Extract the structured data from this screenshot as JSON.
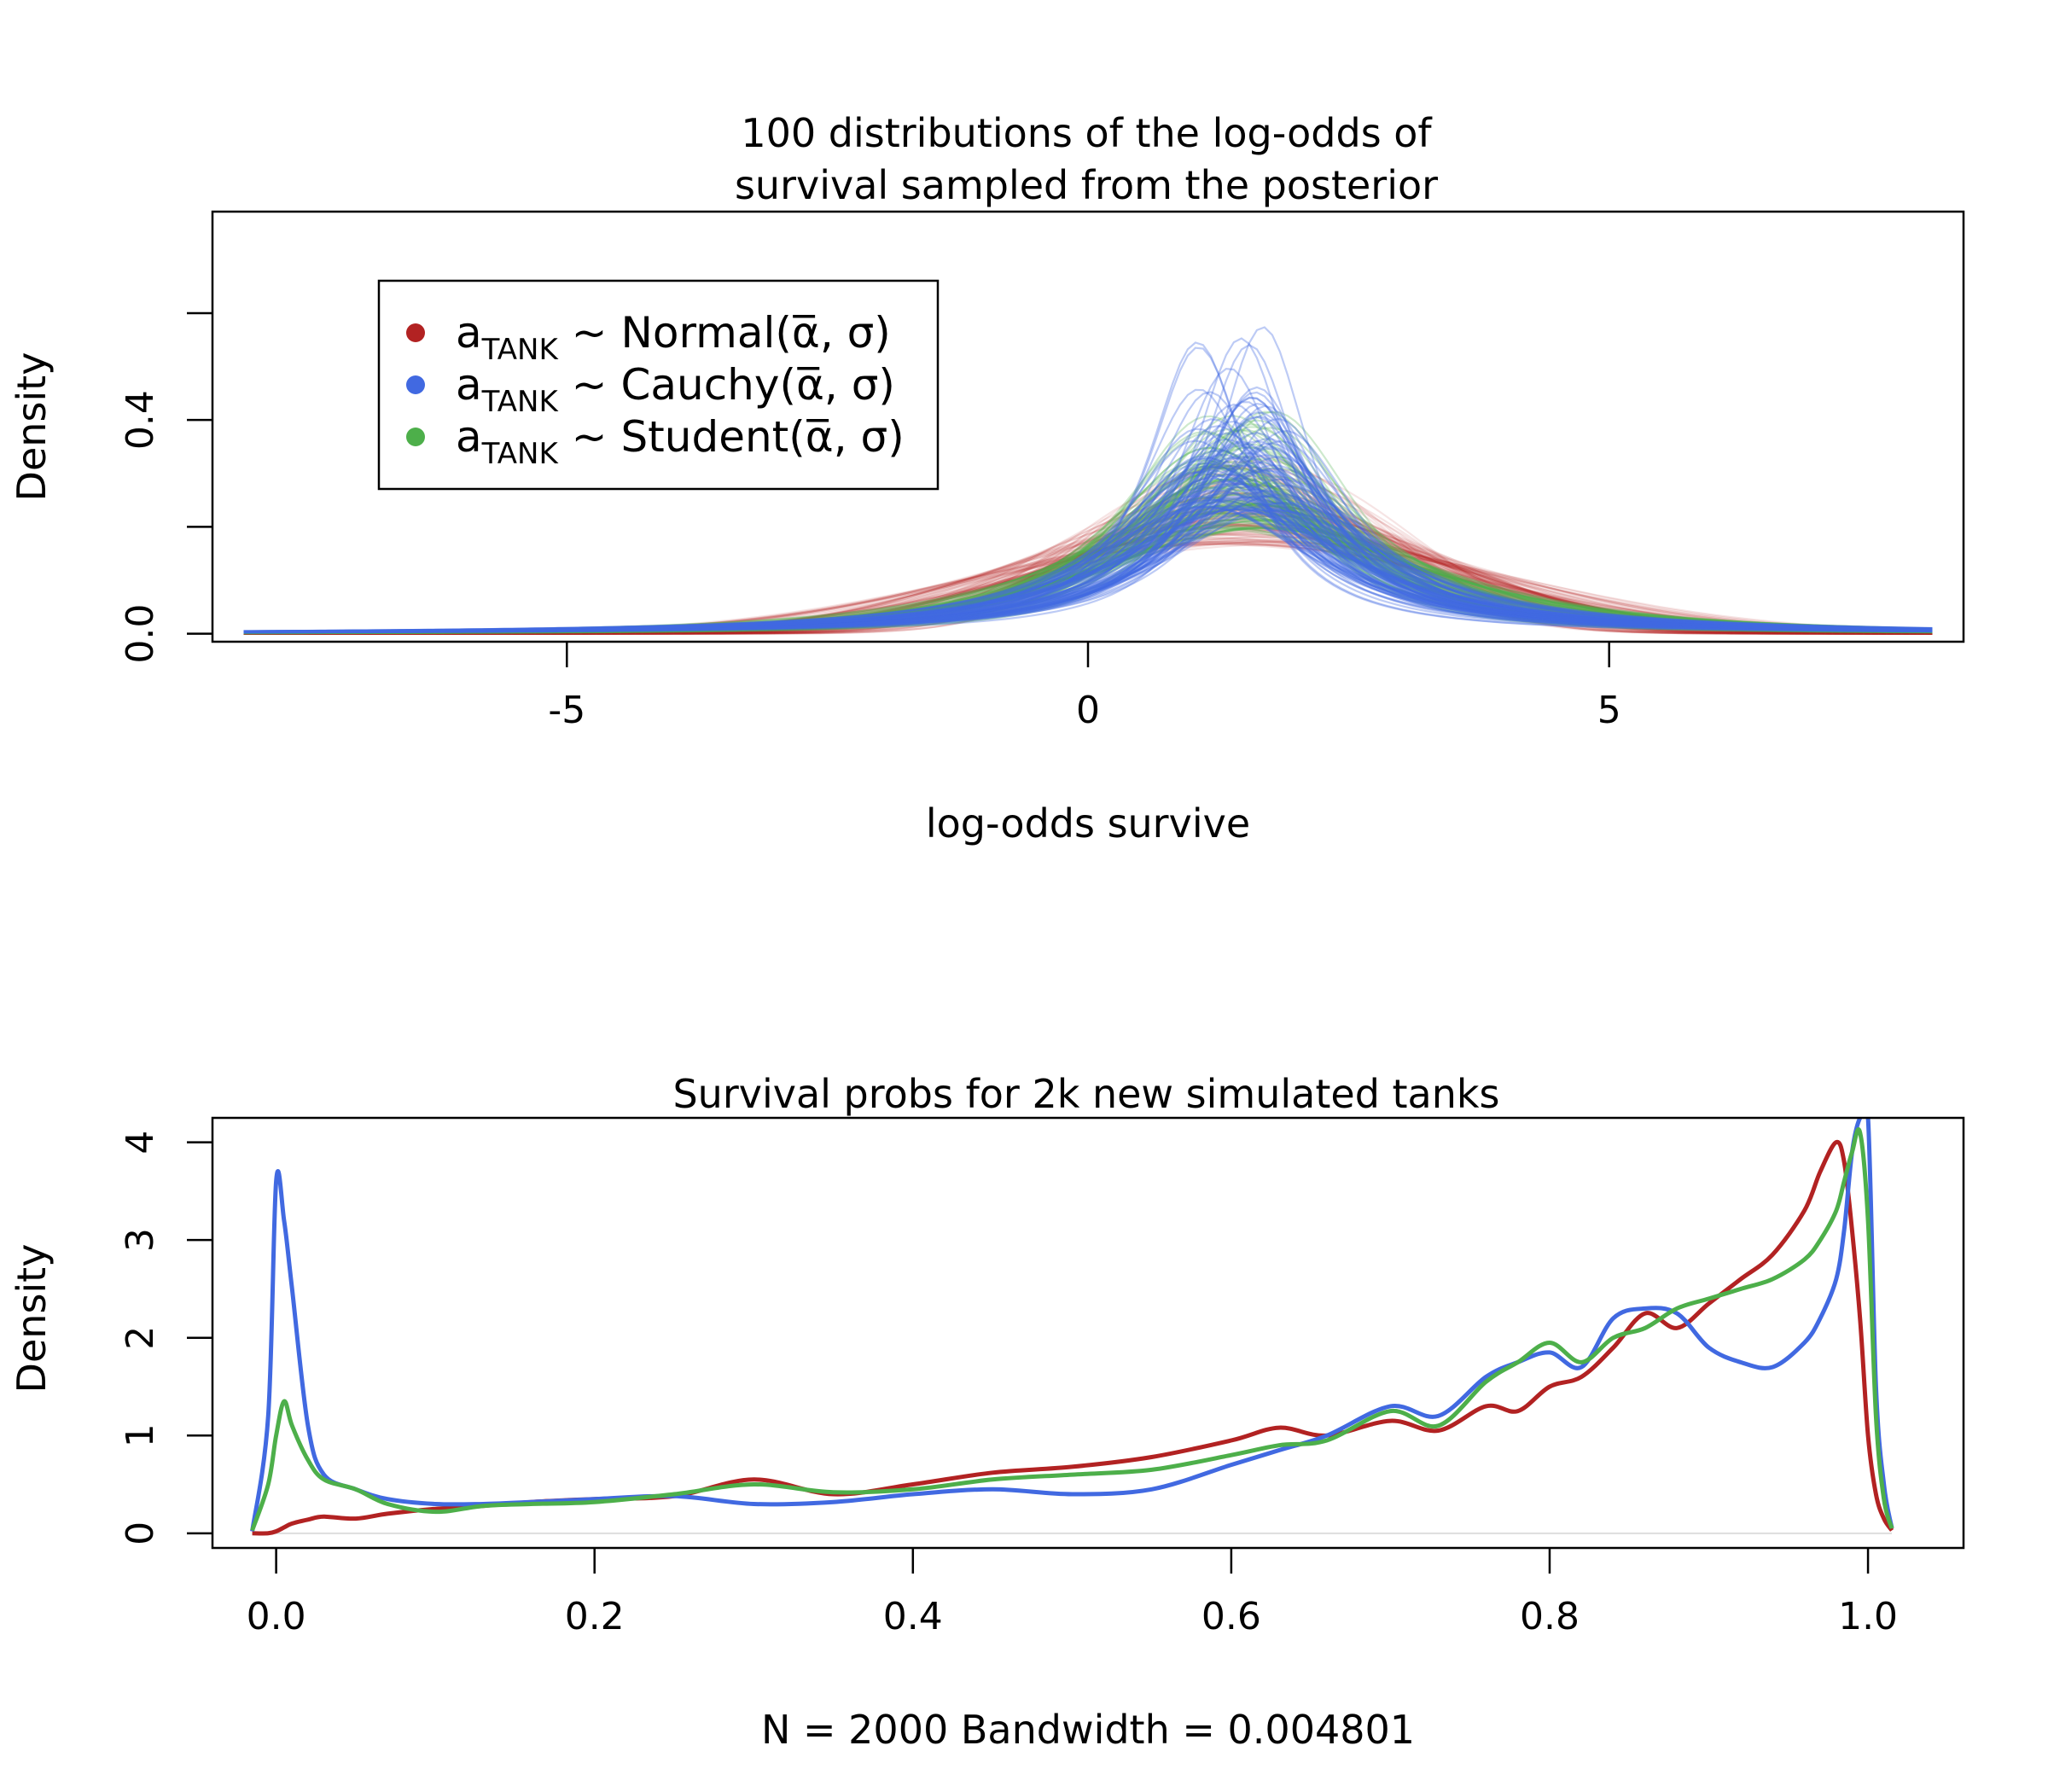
{
  "chart_data": [
    {
      "type": "line",
      "title_lines": [
        "100 distributions of the log-odds of",
        "survival sampled from the posterior"
      ],
      "xlabel": "log-odds survive",
      "ylabel": "Density",
      "xlim": [
        -8.4,
        8.4
      ],
      "ylim": [
        -0.015,
        0.79
      ],
      "x_ticks": [
        -5,
        0,
        5
      ],
      "x_tick_labels": [
        "-5",
        "0",
        "5"
      ],
      "y_ticks": [
        0.0,
        0.2,
        0.4,
        0.6
      ],
      "y_tick_labels": [
        "0.0",
        "",
        "0.4",
        ""
      ],
      "grid": false,
      "legend": {
        "placement": "top-left",
        "entries": [
          {
            "prefix": "a",
            "subscript": "TANK",
            "suffix": " ~ Normal(α̅, σ)",
            "color": "#b22222"
          },
          {
            "prefix": "a",
            "subscript": "TANK",
            "suffix": " ~ Cauchy(α̅, σ)",
            "color": "#4169e1"
          },
          {
            "prefix": "a",
            "subscript": "TANK",
            "suffix": " ~ Student(α̅, σ)",
            "color": "#4daf4a"
          }
        ]
      },
      "series_groups": [
        {
          "name": "Normal",
          "color": "#b22222",
          "count": 100,
          "curve": "normal",
          "mean_range": [
            1.1,
            1.8
          ],
          "sd_range": [
            1.2,
            2.4
          ]
        },
        {
          "name": "Cauchy",
          "color": "#4169e1",
          "count": 100,
          "curve": "cauchy",
          "location_range": [
            1.0,
            1.9
          ],
          "scale_range": [
            0.55,
            1.4
          ]
        },
        {
          "name": "Student",
          "color": "#4daf4a",
          "count": 100,
          "curve": "student-t",
          "location_range": [
            1.1,
            1.8
          ],
          "scale_range": [
            0.85,
            1.8
          ],
          "df": 2
        }
      ]
    },
    {
      "type": "line",
      "title": "Survival probs for 2k new simulated tanks",
      "xlabel": "N = 2000   Bandwidth = 0.004801",
      "ylabel": "Density",
      "xlim": [
        -0.04,
        1.06
      ],
      "ylim": [
        -0.15,
        4.25
      ],
      "x_ticks": [
        0.0,
        0.2,
        0.4,
        0.6,
        0.8,
        1.0
      ],
      "x_tick_labels": [
        "0.0",
        "0.2",
        "0.4",
        "0.6",
        "0.8",
        "1.0"
      ],
      "y_ticks": [
        0,
        1,
        2,
        3,
        4
      ],
      "y_tick_labels": [
        "0",
        "1",
        "2",
        "3",
        "4"
      ],
      "grid": false,
      "x": [
        -0.015,
        -0.005,
        0.0,
        0.005,
        0.01,
        0.02,
        0.03,
        0.05,
        0.07,
        0.1,
        0.13,
        0.16,
        0.2,
        0.25,
        0.3,
        0.35,
        0.4,
        0.45,
        0.5,
        0.55,
        0.6,
        0.63,
        0.66,
        0.7,
        0.73,
        0.76,
        0.78,
        0.8,
        0.82,
        0.84,
        0.86,
        0.88,
        0.9,
        0.92,
        0.94,
        0.96,
        0.97,
        0.98,
        0.985,
        0.99,
        0.995,
        1.0,
        1.005,
        1.01,
        1.015
      ],
      "series": [
        {
          "name": "Normal",
          "color": "#b22222",
          "values": [
            0.0,
            0.0,
            0.02,
            0.06,
            0.1,
            0.14,
            0.17,
            0.15,
            0.2,
            0.25,
            0.28,
            0.32,
            0.35,
            0.38,
            0.55,
            0.4,
            0.5,
            0.62,
            0.68,
            0.78,
            0.95,
            1.08,
            1.0,
            1.15,
            1.05,
            1.3,
            1.25,
            1.5,
            1.6,
            1.9,
            2.25,
            2.1,
            2.35,
            2.6,
            2.85,
            3.3,
            3.7,
            4.0,
            3.8,
            3.1,
            2.2,
            1.0,
            0.4,
            0.15,
            0.03
          ]
        },
        {
          "name": "Cauchy",
          "color": "#4169e1",
          "values": [
            0.02,
            1.2,
            3.6,
            3.2,
            2.5,
            1.1,
            0.6,
            0.45,
            0.35,
            0.3,
            0.3,
            0.32,
            0.35,
            0.38,
            0.3,
            0.32,
            0.4,
            0.45,
            0.4,
            0.45,
            0.7,
            0.85,
            1.0,
            1.3,
            1.2,
            1.6,
            1.75,
            1.85,
            1.7,
            2.2,
            2.3,
            2.25,
            1.9,
            1.75,
            1.7,
            1.95,
            2.2,
            2.6,
            3.1,
            3.9,
            4.25,
            4.25,
            1.5,
            0.5,
            0.05
          ]
        },
        {
          "name": "Student",
          "color": "#4daf4a",
          "values": [
            0.03,
            0.5,
            1.0,
            1.35,
            1.1,
            0.75,
            0.55,
            0.45,
            0.3,
            0.22,
            0.28,
            0.3,
            0.32,
            0.4,
            0.5,
            0.42,
            0.45,
            0.55,
            0.6,
            0.65,
            0.8,
            0.9,
            0.95,
            1.25,
            1.1,
            1.55,
            1.75,
            1.95,
            1.75,
            2.0,
            2.1,
            2.3,
            2.4,
            2.5,
            2.6,
            2.8,
            3.0,
            3.3,
            3.6,
            3.9,
            4.1,
            3.2,
            1.2,
            0.35,
            0.05
          ]
        }
      ]
    }
  ]
}
